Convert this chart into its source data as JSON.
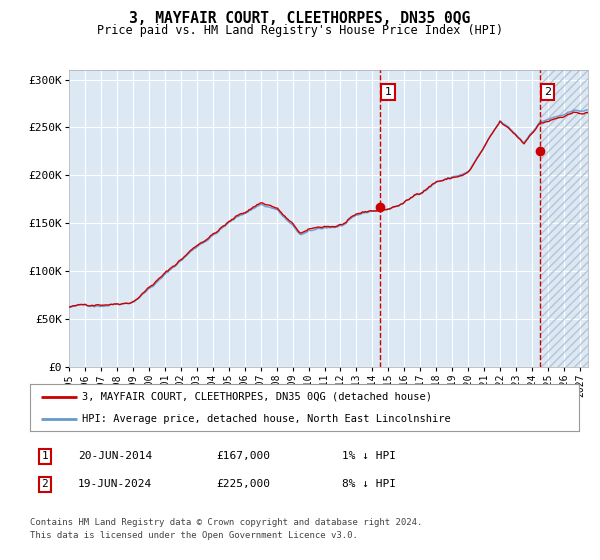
{
  "title": "3, MAYFAIR COURT, CLEETHORPES, DN35 0QG",
  "subtitle": "Price paid vs. HM Land Registry's House Price Index (HPI)",
  "ylim": [
    0,
    310000
  ],
  "xlim_start": 1995.0,
  "xlim_end": 2027.5,
  "yticks": [
    0,
    50000,
    100000,
    150000,
    200000,
    250000,
    300000
  ],
  "ytick_labels": [
    "£0",
    "£50K",
    "£100K",
    "£150K",
    "£200K",
    "£250K",
    "£300K"
  ],
  "xtick_years": [
    1995,
    1996,
    1997,
    1998,
    1999,
    2000,
    2001,
    2002,
    2003,
    2004,
    2005,
    2006,
    2007,
    2008,
    2009,
    2010,
    2011,
    2012,
    2013,
    2014,
    2015,
    2016,
    2017,
    2018,
    2019,
    2020,
    2021,
    2022,
    2023,
    2024,
    2025,
    2026,
    2027
  ],
  "bg_color": "#dce9f5",
  "grid_color": "#ffffff",
  "hpi_color": "#6699cc",
  "price_color": "#cc0000",
  "purchase1_date": 2014.47,
  "purchase1_price": 167000,
  "purchase2_date": 2024.47,
  "purchase2_price": 225000,
  "hatch_start": 2024.47,
  "legend_label1": "3, MAYFAIR COURT, CLEETHORPES, DN35 0QG (detached house)",
  "legend_label2": "HPI: Average price, detached house, North East Lincolnshire",
  "footnote1": "Contains HM Land Registry data © Crown copyright and database right 2024.",
  "footnote2": "This data is licensed under the Open Government Licence v3.0.",
  "table_row1": [
    "1",
    "20-JUN-2014",
    "£167,000",
    "1% ↓ HPI"
  ],
  "table_row2": [
    "2",
    "19-JUN-2024",
    "£225,000",
    "8% ↓ HPI"
  ]
}
